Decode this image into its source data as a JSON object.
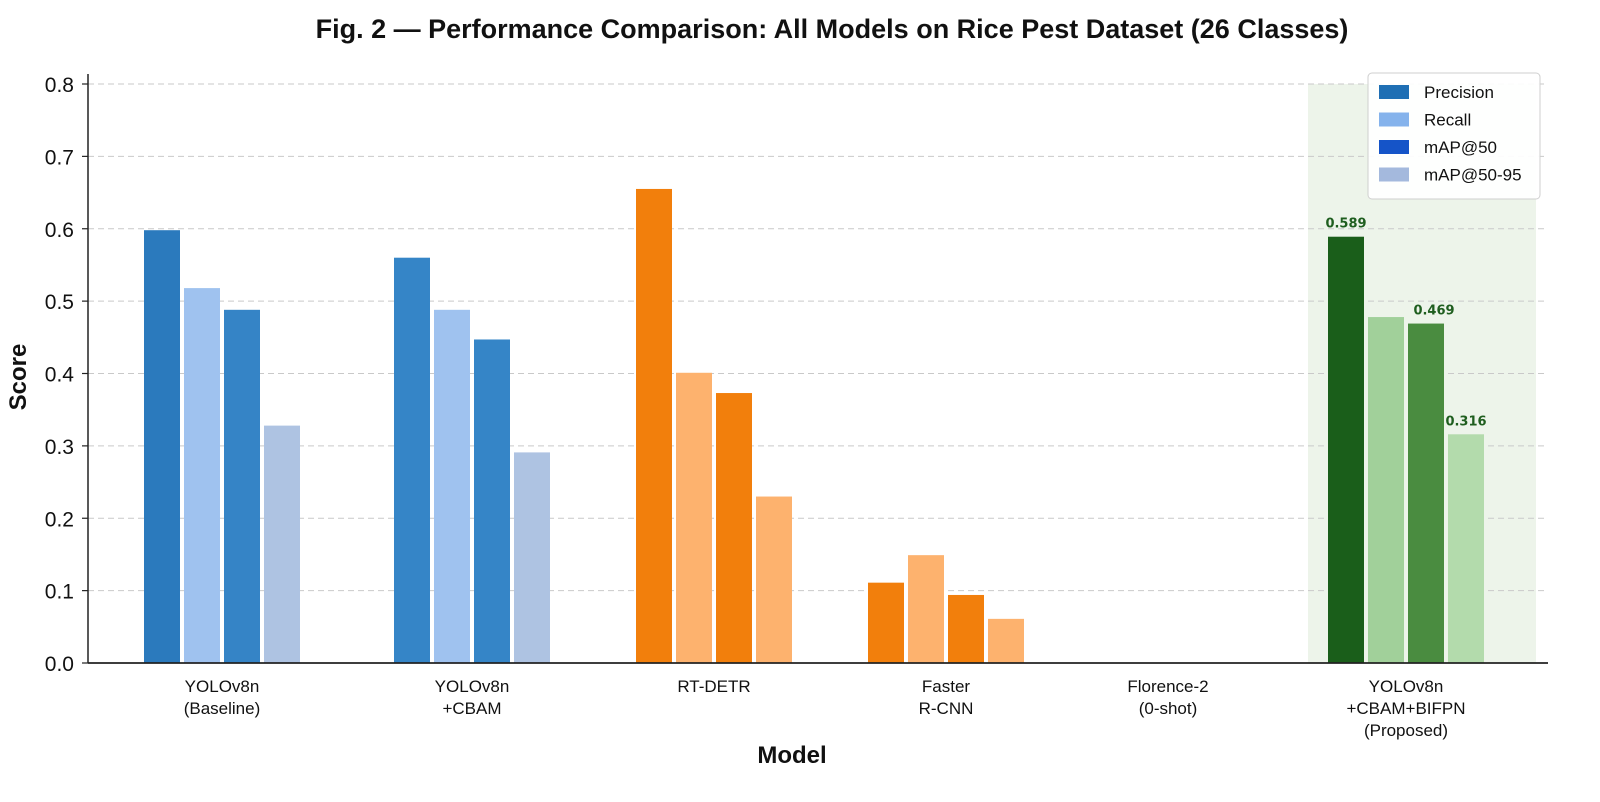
{
  "chart_data": {
    "type": "bar",
    "title": "Fig. 2 — Performance Comparison: All Models on Rice Pest Dataset (26 Classes)",
    "xlabel": "Model",
    "ylabel": "Score",
    "ylim": [
      0,
      0.8
    ],
    "yticks": [
      "0.0",
      "0.1",
      "0.2",
      "0.3",
      "0.4",
      "0.5",
      "0.6",
      "0.7",
      "0.8"
    ],
    "grid": true,
    "legend_position": "top-right",
    "categories": [
      [
        "YOLOv8n",
        "(Baseline)"
      ],
      [
        "YOLOv8n",
        "+CBAM"
      ],
      [
        "RT-DETR"
      ],
      [
        "Faster",
        "R-CNN"
      ],
      [
        "Florence-2",
        "(0-shot)"
      ],
      [
        "YOLOv8n",
        "+CBAM+BIFPN",
        "(Proposed)"
      ]
    ],
    "highlighted_category_index": 5,
    "series": [
      {
        "name": "Precision",
        "values": [
          0.598,
          0.56,
          0.655,
          0.111,
          0.0,
          0.589
        ]
      },
      {
        "name": "Recall",
        "values": [
          0.518,
          0.488,
          0.401,
          0.149,
          0.0,
          0.478
        ]
      },
      {
        "name": "mAP@50",
        "values": [
          0.488,
          0.447,
          0.373,
          0.094,
          0.0,
          0.469
        ]
      },
      {
        "name": "mAP@50-95",
        "values": [
          0.328,
          0.291,
          0.23,
          0.061,
          0.0,
          0.316
        ]
      }
    ],
    "legend_colors": [
      "#1f6fb4",
      "#85b3ec",
      "#1554c8",
      "#a4b9dd"
    ],
    "group_colors": [
      [
        "#2b7abd",
        "#9fc2ef",
        "#3584c6",
        "#aec3e2"
      ],
      [
        "#3585c7",
        "#9fc2ef",
        "#3585c7",
        "#aec3e2"
      ],
      [
        "#f27f0c",
        "#fdb26e",
        "#f27f0c",
        "#fdb26e"
      ],
      [
        "#f27f0c",
        "#fdb26e",
        "#f27f0c",
        "#fdb26e"
      ],
      [
        "#f27f0c",
        "#fdb26e",
        "#f27f0c",
        "#fdb26e"
      ],
      [
        "#1a5e1a",
        "#a1d09a",
        "#4a8c40",
        "#b3dbac"
      ]
    ],
    "value_labels": [
      {
        "category": 5,
        "series": 0,
        "text": "0.589"
      },
      {
        "category": 5,
        "series": 2,
        "text": "0.469"
      },
      {
        "category": 5,
        "series": 3,
        "text": "0.316"
      }
    ],
    "value_label_color": "#1f5e1f",
    "highlight_color": "#edf4ea"
  }
}
